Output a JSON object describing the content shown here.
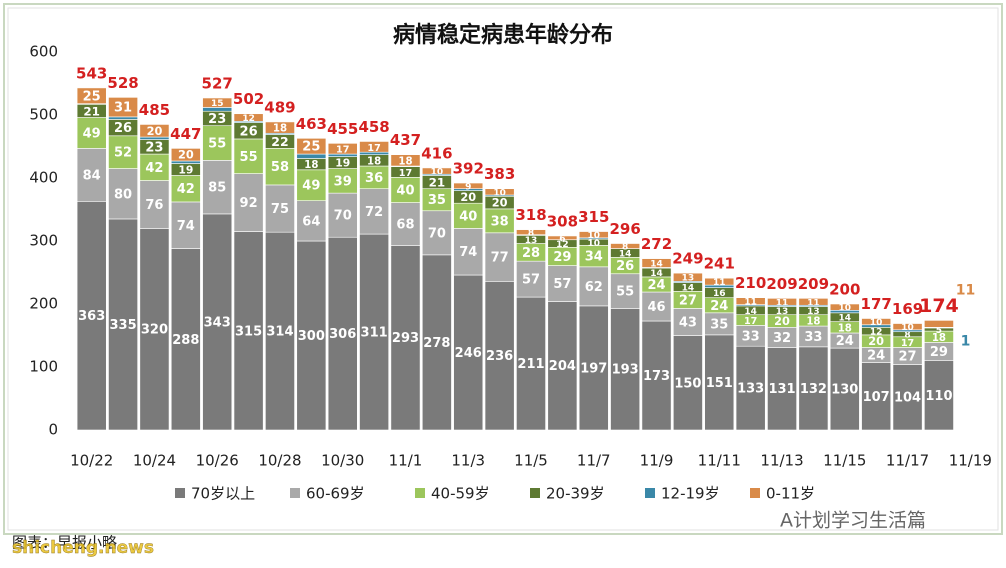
{
  "chart_data": {
    "type": "stacked_bar",
    "title": "病情稳定病患年龄分布",
    "categories": [
      "10/22",
      null,
      "10/24",
      null,
      "10/26",
      null,
      "10/28",
      null,
      "10/30",
      null,
      "11/1",
      null,
      "11/3",
      null,
      "11/5",
      null,
      "11/7",
      null,
      "11/9",
      null,
      "11/11",
      null,
      "11/13",
      null,
      "11/15",
      null,
      "11/17",
      null,
      "11/19"
    ],
    "series": [
      {
        "name": "70岁以上",
        "color": "#7a7a7a",
        "values": [
          363,
          335,
          320,
          288,
          343,
          315,
          314,
          300,
          306,
          311,
          293,
          278,
          246,
          236,
          211,
          204,
          197,
          193,
          173,
          150,
          151,
          133,
          131,
          132,
          130,
          107,
          104,
          110,
          null
        ]
      },
      {
        "name": "60-69岁",
        "color": "#a9a9a9",
        "values": [
          84,
          80,
          76,
          74,
          85,
          92,
          75,
          64,
          70,
          72,
          68,
          70,
          74,
          77,
          57,
          57,
          62,
          55,
          46,
          43,
          35,
          33,
          32,
          33,
          24,
          24,
          27,
          29,
          null
        ]
      },
      {
        "name": "40-59岁",
        "color": "#9cc65c",
        "values": [
          49,
          52,
          42,
          42,
          55,
          55,
          58,
          49,
          39,
          36,
          40,
          35,
          40,
          38,
          28,
          29,
          34,
          26,
          24,
          27,
          24,
          17,
          20,
          18,
          18,
          20,
          17,
          18,
          null
        ]
      },
      {
        "name": "20-39岁",
        "color": "#5e7a32",
        "values": [
          21,
          26,
          23,
          19,
          23,
          26,
          22,
          18,
          19,
          18,
          17,
          21,
          20,
          20,
          13,
          12,
          10,
          14,
          14,
          14,
          16,
          14,
          13,
          13,
          14,
          12,
          8,
          5,
          null
        ]
      },
      {
        "name": "12-19岁",
        "color": "#3a88a8",
        "values": [
          1,
          4,
          4,
          4,
          6,
          2,
          2,
          7,
          4,
          4,
          1,
          2,
          3,
          2,
          1,
          0,
          2,
          0,
          1,
          2,
          4,
          2,
          2,
          2,
          4,
          4,
          3,
          1,
          null
        ]
      },
      {
        "name": "0-11岁",
        "color": "#d98a48",
        "values": [
          25,
          31,
          20,
          20,
          15,
          12,
          18,
          25,
          17,
          17,
          18,
          10,
          9,
          10,
          8,
          6,
          10,
          8,
          14,
          13,
          11,
          11,
          11,
          11,
          10,
          10,
          10,
          11,
          null
        ]
      }
    ],
    "totals": [
      543,
      528,
      485,
      447,
      527,
      502,
      489,
      463,
      455,
      458,
      437,
      416,
      392,
      383,
      318,
      308,
      315,
      296,
      272,
      249,
      241,
      210,
      209,
      209,
      200,
      177,
      169,
      174,
      null
    ],
    "ylim": [
      0,
      600
    ],
    "yticks": [
      0,
      100,
      200,
      300,
      400,
      500,
      600
    ],
    "grid": false,
    "legend": "bottom",
    "source_note": "图表：早报小略",
    "watermarks": [
      "shicheng.news",
      "A计划学习生活篇"
    ]
  }
}
